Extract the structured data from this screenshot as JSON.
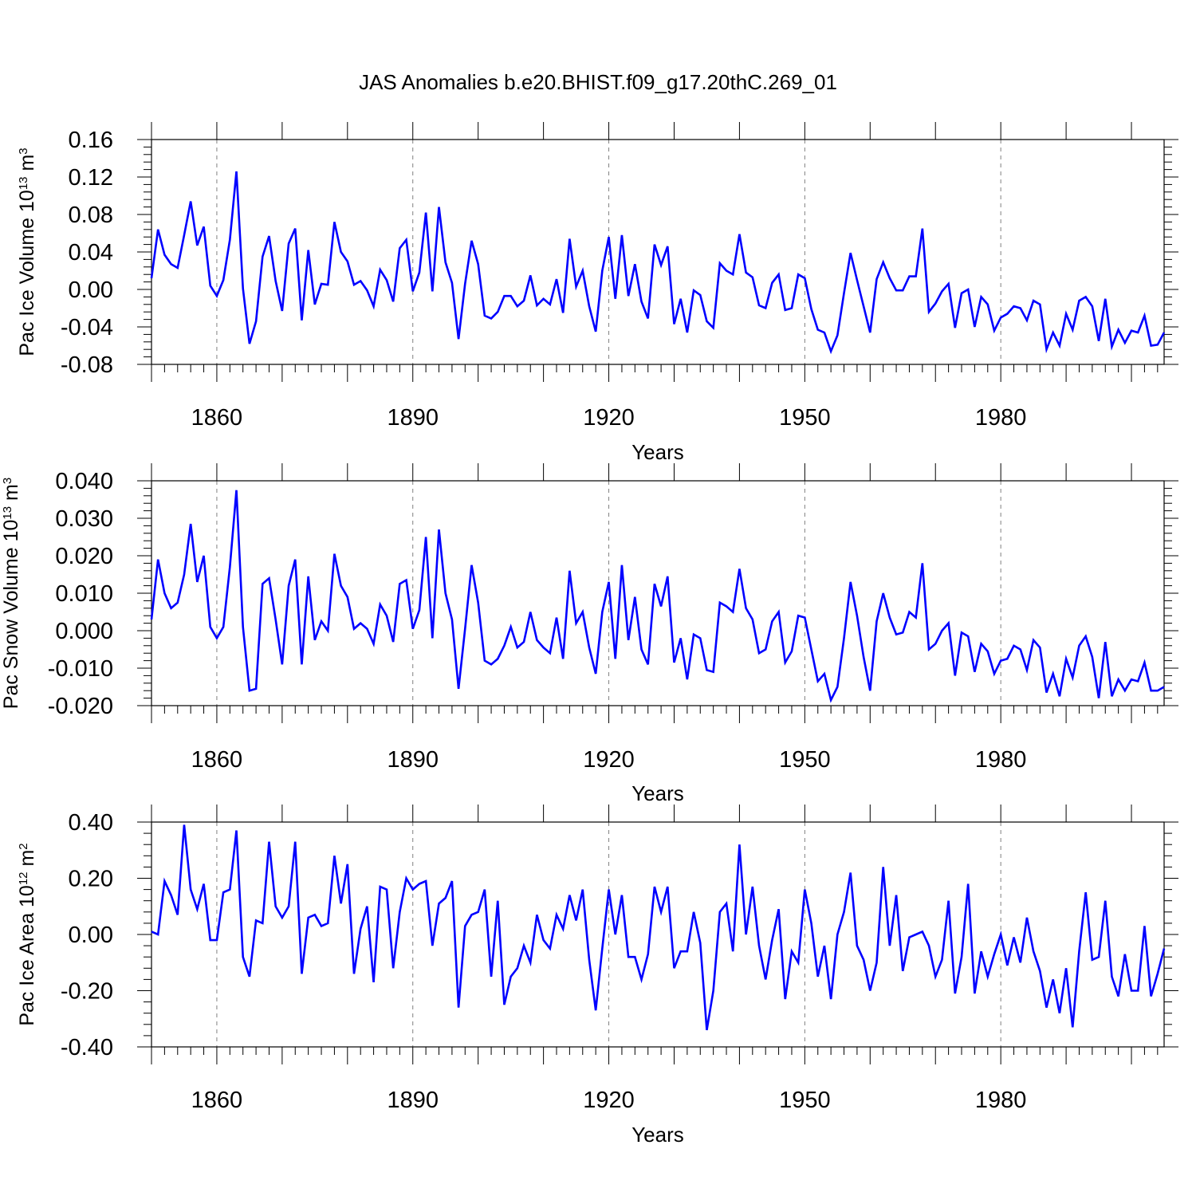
{
  "title": "JAS Anomalies b.e20.BHIST.f09_g17.20thC.269_01",
  "colors": {
    "line": "#0000ff",
    "frame": "#000000",
    "grid": "#808080"
  },
  "years": {
    "start": 1850,
    "end": 2005
  },
  "x_ticks": [
    1860,
    1890,
    1920,
    1950,
    1980
  ],
  "x_label": "Years",
  "panels": [
    {
      "ylabel": "Pac Ice Volume",
      "units_base": "10",
      "units_exp": "13",
      "units_unit": "m",
      "units_unit_exp": "3",
      "tick_labels": [
        "0.16",
        "0.12",
        "0.08",
        "0.04",
        "0.00",
        "-0.04",
        "-0.08"
      ]
    },
    {
      "ylabel": "Pac Snow Volume",
      "units_base": "10",
      "units_exp": "13",
      "units_unit": "m",
      "units_unit_exp": "3",
      "tick_labels": [
        "0.040",
        "0.030",
        "0.020",
        "0.010",
        "0.000",
        "-0.010",
        "-0.020"
      ]
    },
    {
      "ylabel": "Pac Ice Area",
      "units_base": "10",
      "units_exp": "12",
      "units_unit": "m",
      "units_unit_exp": "2",
      "tick_labels": [
        "0.40",
        "0.20",
        "0.00",
        "-0.20",
        "-0.40"
      ]
    }
  ],
  "chart_data": [
    {
      "type": "line",
      "title": "JAS Anomalies b.e20.BHIST.f09_g17.20thC.269_01",
      "xlabel": "Years",
      "ylabel": "Pac Ice Volume 10^13 m^3",
      "xlim": [
        1850,
        2005
      ],
      "ylim": [
        -0.08,
        0.16
      ],
      "x_start": 1850,
      "grid": "vertical dashed at labeled years",
      "series": [
        {
          "values": [
            0.012,
            0.064,
            0.037,
            0.027,
            0.023,
            0.058,
            0.094,
            0.047,
            0.067,
            0.004,
            -0.007,
            0.01,
            0.053,
            0.126,
            0.001,
            -0.058,
            -0.034,
            0.035,
            0.057,
            0.009,
            -0.023,
            0.049,
            0.065,
            -0.033,
            0.042,
            -0.016,
            0.006,
            0.005,
            0.072,
            0.04,
            0.03,
            0.005,
            0.009,
            -0.001,
            -0.018,
            0.021,
            0.01,
            -0.013,
            0.044,
            0.053,
            -0.002,
            0.018,
            0.082,
            -0.002,
            0.088,
            0.029,
            0.007,
            -0.053,
            0.006,
            0.052,
            0.027,
            -0.028,
            -0.031,
            -0.024,
            -0.007,
            -0.007,
            -0.018,
            -0.012,
            0.015,
            -0.017,
            -0.01,
            -0.016,
            0.011,
            -0.025,
            0.054,
            0.003,
            0.02,
            -0.018,
            -0.045,
            0.02,
            0.056,
            -0.01,
            0.058,
            -0.007,
            0.027,
            -0.013,
            -0.031,
            0.048,
            0.026,
            0.046,
            -0.037,
            -0.01,
            -0.046,
            -0.001,
            -0.006,
            -0.034,
            -0.041,
            0.028,
            0.02,
            0.016,
            0.059,
            0.018,
            0.013,
            -0.017,
            -0.02,
            0.007,
            0.016,
            -0.022,
            -0.02,
            0.016,
            0.012,
            -0.021,
            -0.043,
            -0.046,
            -0.066,
            -0.049,
            -0.004,
            0.039,
            0.01,
            -0.018,
            -0.046,
            0.011,
            0.029,
            0.012,
            -0.001,
            -0.001,
            0.014,
            0.014,
            0.065,
            -0.024,
            -0.015,
            -0.002,
            0.006,
            -0.041,
            -0.004,
            0.0,
            -0.04,
            -0.008,
            -0.016,
            -0.044,
            -0.03,
            -0.026,
            -0.018,
            -0.02,
            -0.033,
            -0.012,
            -0.016,
            -0.064,
            -0.046,
            -0.06,
            -0.026,
            -0.043,
            -0.012,
            -0.008,
            -0.018,
            -0.055,
            -0.01,
            -0.061,
            -0.043,
            -0.057,
            -0.044,
            -0.046,
            -0.028,
            -0.06,
            -0.059,
            -0.046
          ]
        }
      ]
    },
    {
      "type": "line",
      "xlabel": "Years",
      "ylabel": "Pac Snow Volume 10^13 m^3",
      "xlim": [
        1850,
        2005
      ],
      "ylim": [
        -0.02,
        0.04
      ],
      "x_start": 1850,
      "grid": "vertical dashed at labeled years",
      "series": [
        {
          "values": [
            0.003,
            0.019,
            0.01,
            0.006,
            0.0075,
            0.015,
            0.0285,
            0.013,
            0.02,
            0.001,
            -0.002,
            0.001,
            0.017,
            0.0375,
            0.001,
            -0.016,
            -0.0155,
            0.0125,
            0.014,
            0.003,
            -0.009,
            0.012,
            0.019,
            -0.009,
            0.0145,
            -0.0025,
            0.0025,
            0.0,
            0.0205,
            0.012,
            0.009,
            0.0005,
            0.002,
            0.0005,
            -0.0035,
            0.007,
            0.004,
            -0.003,
            0.0125,
            0.0135,
            0.0005,
            0.0055,
            0.025,
            -0.002,
            0.027,
            0.01,
            0.003,
            -0.0155,
            0.0005,
            0.0175,
            0.0075,
            -0.008,
            -0.009,
            -0.0075,
            -0.004,
            0.001,
            -0.0045,
            -0.003,
            0.005,
            -0.0025,
            -0.0045,
            -0.006,
            0.0035,
            -0.0075,
            0.016,
            0.002,
            0.005,
            -0.0045,
            -0.0115,
            0.005,
            0.013,
            -0.0075,
            0.0175,
            -0.0025,
            0.009,
            -0.005,
            -0.009,
            0.0125,
            0.0065,
            0.0145,
            -0.0085,
            -0.002,
            -0.013,
            -0.001,
            -0.002,
            -0.0105,
            -0.011,
            0.0075,
            0.0065,
            0.005,
            0.0165,
            0.006,
            0.003,
            -0.006,
            -0.005,
            0.0025,
            0.005,
            -0.0085,
            -0.0055,
            0.004,
            0.0035,
            -0.005,
            -0.0135,
            -0.0115,
            -0.0185,
            -0.015,
            -0.002,
            0.013,
            0.004,
            -0.007,
            -0.016,
            0.0025,
            0.01,
            0.0035,
            -0.001,
            -0.0005,
            0.005,
            0.0035,
            0.018,
            -0.005,
            -0.0035,
            0.0,
            0.002,
            -0.012,
            -0.0005,
            -0.0015,
            -0.011,
            -0.0035,
            -0.0055,
            -0.0115,
            -0.008,
            -0.0075,
            -0.004,
            -0.005,
            -0.0105,
            -0.0025,
            -0.0045,
            -0.0165,
            -0.0115,
            -0.0175,
            -0.0075,
            -0.0125,
            -0.004,
            -0.0015,
            -0.007,
            -0.018,
            -0.003,
            -0.0175,
            -0.013,
            -0.016,
            -0.013,
            -0.0135,
            -0.0085,
            -0.016,
            -0.016,
            -0.015
          ]
        }
      ]
    },
    {
      "type": "line",
      "xlabel": "Years",
      "ylabel": "Pac Ice Area 10^12 m^2",
      "xlim": [
        1850,
        2005
      ],
      "ylim": [
        -0.4,
        0.4
      ],
      "x_start": 1850,
      "grid": "vertical dashed at labeled years",
      "series": [
        {
          "values": [
            0.01,
            0.0,
            0.19,
            0.14,
            0.07,
            0.39,
            0.16,
            0.09,
            0.18,
            -0.02,
            -0.02,
            0.15,
            0.16,
            0.37,
            -0.08,
            -0.15,
            0.05,
            0.04,
            0.33,
            0.1,
            0.06,
            0.1,
            0.33,
            -0.14,
            0.06,
            0.07,
            0.03,
            0.04,
            0.28,
            0.11,
            0.25,
            -0.14,
            0.02,
            0.1,
            -0.17,
            0.17,
            0.16,
            -0.12,
            0.08,
            0.2,
            0.16,
            0.18,
            0.19,
            -0.04,
            0.11,
            0.13,
            0.19,
            -0.26,
            0.03,
            0.07,
            0.08,
            0.16,
            -0.15,
            0.12,
            -0.25,
            -0.15,
            -0.12,
            -0.04,
            -0.1,
            0.07,
            -0.02,
            -0.05,
            0.07,
            0.02,
            0.14,
            0.05,
            0.16,
            -0.09,
            -0.27,
            -0.05,
            0.16,
            0.0,
            0.14,
            -0.08,
            -0.08,
            -0.16,
            -0.07,
            0.17,
            0.08,
            0.17,
            -0.12,
            -0.06,
            -0.06,
            0.08,
            -0.03,
            -0.34,
            -0.2,
            0.08,
            0.11,
            -0.06,
            0.32,
            0.0,
            0.17,
            -0.04,
            -0.16,
            -0.02,
            0.09,
            -0.23,
            -0.06,
            -0.1,
            0.16,
            0.04,
            -0.15,
            -0.04,
            -0.23,
            0.0,
            0.08,
            0.22,
            -0.04,
            -0.09,
            -0.2,
            -0.1,
            0.24,
            -0.04,
            0.14,
            -0.13,
            -0.01,
            0.0,
            0.01,
            -0.04,
            -0.15,
            -0.09,
            0.12,
            -0.21,
            -0.08,
            0.18,
            -0.21,
            -0.06,
            -0.15,
            -0.07,
            0.0,
            -0.11,
            -0.01,
            -0.1,
            0.06,
            -0.06,
            -0.13,
            -0.26,
            -0.16,
            -0.28,
            -0.12,
            -0.33,
            -0.06,
            0.15,
            -0.09,
            -0.08,
            0.12,
            -0.15,
            -0.22,
            -0.07,
            -0.2,
            -0.2,
            0.03,
            -0.22,
            -0.14,
            -0.05
          ]
        }
      ]
    }
  ]
}
